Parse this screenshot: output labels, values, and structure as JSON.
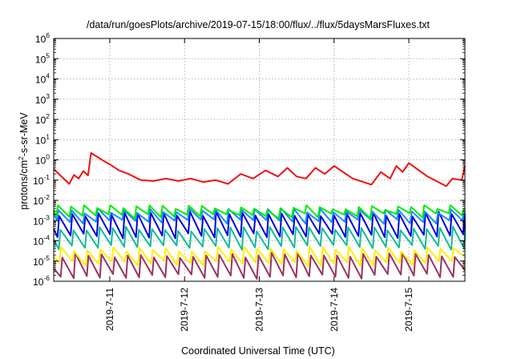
{
  "chart_data": {
    "type": "line",
    "title": "/data/run/goesPlots/archive/2019-07-15/18:00/flux/../flux/5daysMarsFluxes.txt",
    "xlabel": "Coordinated Universal Time (UTC)",
    "ylabel_prefix": "protons/cm",
    "ylabel_exp": "2",
    "ylabel_suffix": "-s-sr-MeV",
    "y_scale": "log",
    "ylim": [
      1e-06,
      1000000.0
    ],
    "y_ticks": [
      {
        "base": "10",
        "exp": "-6",
        "value": 1e-06
      },
      {
        "base": "10",
        "exp": "-5",
        "value": 1e-05
      },
      {
        "base": "10",
        "exp": "-4",
        "value": 0.0001
      },
      {
        "base": "10",
        "exp": "-3",
        "value": 0.001
      },
      {
        "base": "10",
        "exp": "-2",
        "value": 0.01
      },
      {
        "base": "10",
        "exp": "-1",
        "value": 0.1
      },
      {
        "base": "10",
        "exp": "0",
        "value": 1
      },
      {
        "base": "10",
        "exp": "1",
        "value": 10
      },
      {
        "base": "10",
        "exp": "2",
        "value": 100
      },
      {
        "base": "10",
        "exp": "3",
        "value": 1000
      },
      {
        "base": "10",
        "exp": "4",
        "value": 10000
      },
      {
        "base": "10",
        "exp": "5",
        "value": 100000
      },
      {
        "base": "10",
        "exp": "6",
        "value": 1000000
      }
    ],
    "xlim": [
      "2019-07-10T06:00",
      "2019-07-15T18:00"
    ],
    "x_ticks": [
      {
        "label": "2019-7-11",
        "value": "2019-07-11T00:00"
      },
      {
        "label": "2019-7-12",
        "value": "2019-07-12T00:00"
      },
      {
        "label": "2019-7-13",
        "value": "2019-07-13T00:00"
      },
      {
        "label": "2019-7-14",
        "value": "2019-07-14T00:00"
      },
      {
        "label": "2019-7-15",
        "value": "2019-07-15T00:00"
      }
    ],
    "grid": true,
    "legend": "none",
    "series": [
      {
        "color": "#ee1111",
        "points": [
          [
            "2019-07-10T06:00",
            0.35
          ],
          [
            "2019-07-10T11:00",
            0.065
          ],
          [
            "2019-07-10T12:30",
            0.18
          ],
          [
            "2019-07-10T14:00",
            0.12
          ],
          [
            "2019-07-10T15:30",
            0.28
          ],
          [
            "2019-07-10T17:00",
            0.17
          ],
          [
            "2019-07-10T18:00",
            2.2
          ],
          [
            "2019-07-10T22:00",
            0.9
          ],
          [
            "2019-07-11T00:00",
            0.6
          ],
          [
            "2019-07-11T03:00",
            0.3
          ],
          [
            "2019-07-11T06:00",
            0.2
          ],
          [
            "2019-07-11T10:00",
            0.1
          ],
          [
            "2019-07-11T14:00",
            0.09
          ],
          [
            "2019-07-11T18:00",
            0.12
          ],
          [
            "2019-07-11T22:00",
            0.09
          ],
          [
            "2019-07-12T02:00",
            0.12
          ],
          [
            "2019-07-12T06:00",
            0.08
          ],
          [
            "2019-07-12T10:00",
            0.1
          ],
          [
            "2019-07-12T14:00",
            0.065
          ],
          [
            "2019-07-12T18:00",
            0.2
          ],
          [
            "2019-07-12T22:00",
            0.12
          ],
          [
            "2019-07-13T02:00",
            0.3
          ],
          [
            "2019-07-13T06:00",
            0.15
          ],
          [
            "2019-07-13T09:00",
            0.4
          ],
          [
            "2019-07-13T12:00",
            0.15
          ],
          [
            "2019-07-13T15:00",
            0.12
          ],
          [
            "2019-07-13T18:00",
            0.4
          ],
          [
            "2019-07-13T21:00",
            0.2
          ],
          [
            "2019-07-14T00:00",
            0.5
          ],
          [
            "2019-07-14T06:00",
            0.12
          ],
          [
            "2019-07-14T12:00",
            0.06
          ],
          [
            "2019-07-14T15:00",
            0.25
          ],
          [
            "2019-07-14T18:00",
            0.12
          ],
          [
            "2019-07-14T20:00",
            0.5
          ],
          [
            "2019-07-14T22:00",
            0.25
          ],
          [
            "2019-07-15T00:00",
            0.7
          ],
          [
            "2019-07-15T06:00",
            0.15
          ],
          [
            "2019-07-15T12:00",
            0.05
          ],
          [
            "2019-07-15T14:00",
            0.12
          ],
          [
            "2019-07-15T17:00",
            0.1
          ],
          [
            "2019-07-15T18:00",
            0.5
          ]
        ]
      },
      {
        "color": "#00ee00",
        "sawtooth": {
          "start": "2019-07-10T06:00",
          "end": "2019-07-15T18:00",
          "period_hours": 4.2,
          "peak": 0.0045,
          "trough": 0.0018,
          "rise_fraction": 0.12,
          "seed": 3
        }
      },
      {
        "color": "#1a8cff",
        "sawtooth": {
          "start": "2019-07-10T06:00",
          "end": "2019-07-15T18:00",
          "period_hours": 4.2,
          "peak": 0.0032,
          "trough": 0.0009,
          "rise_fraction": 0.12,
          "seed": 5
        }
      },
      {
        "color": "#0000dd",
        "sawtooth": {
          "start": "2019-07-10T06:00",
          "end": "2019-07-15T18:00",
          "period_hours": 4.2,
          "peak": 0.0022,
          "trough": 0.00018,
          "rise_fraction": 0.12,
          "seed": 7
        }
      },
      {
        "color": "#11bb99",
        "sawtooth": {
          "start": "2019-07-10T06:00",
          "end": "2019-07-15T18:00",
          "period_hours": 4.2,
          "peak": 0.0004,
          "trough": 5e-05,
          "rise_fraction": 0.12,
          "seed": 11
        }
      },
      {
        "color": "#ffee00",
        "sawtooth": {
          "start": "2019-07-10T06:00",
          "end": "2019-07-15T18:00",
          "period_hours": 4.2,
          "peak": 4e-05,
          "trough": 8e-06,
          "rise_fraction": 0.12,
          "seed": 13
        }
      },
      {
        "color": "#993366",
        "sawtooth": {
          "start": "2019-07-10T06:00",
          "end": "2019-07-15T18:00",
          "period_hours": 4.2,
          "peak": 2e-05,
          "trough": 1.8e-06,
          "rise_fraction": 0.12,
          "seed": 17
        }
      }
    ]
  }
}
